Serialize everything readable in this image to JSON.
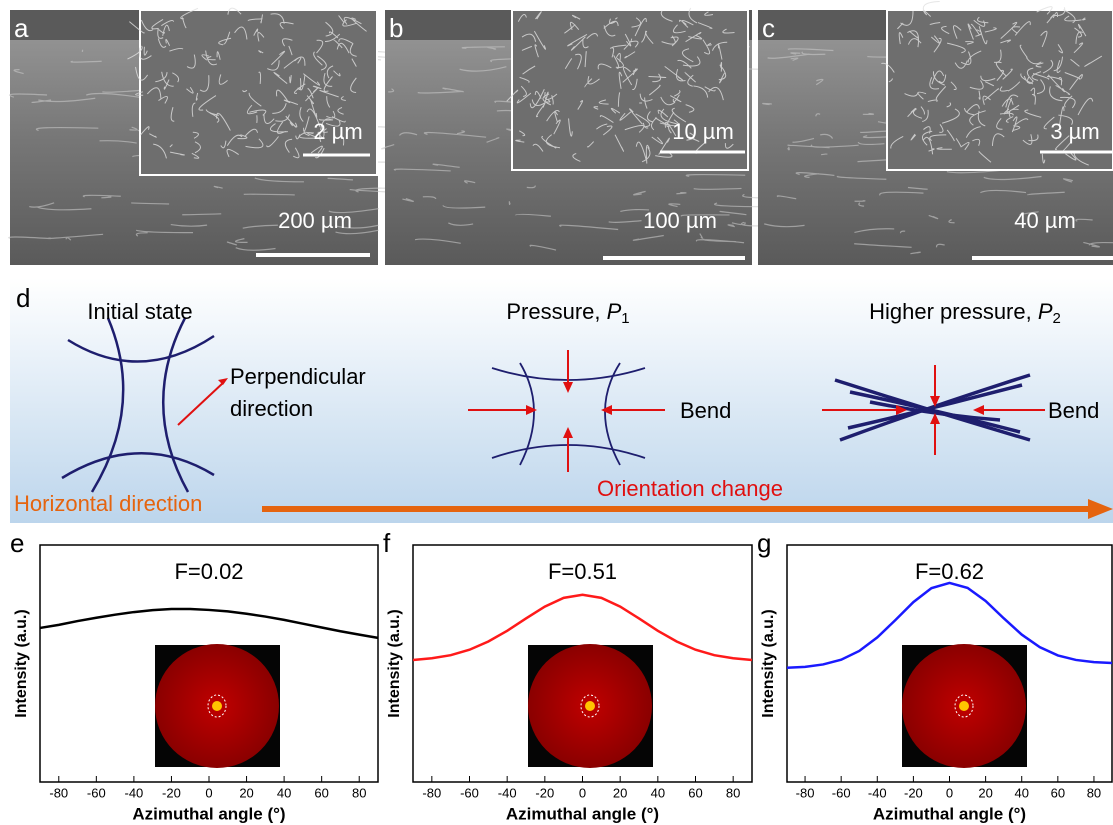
{
  "panels": [
    {
      "letter": "a",
      "scale": "200 µm",
      "inset_scale": "2 µm"
    },
    {
      "letter": "b",
      "scale": "100 µm",
      "inset_scale": "10 µm"
    },
    {
      "letter": "c",
      "scale": "40 µm",
      "inset_scale": "3 µm"
    }
  ],
  "diagram": {
    "letter": "d",
    "initial": "Initial state",
    "perpendicular": [
      "Perpendicular",
      "direction"
    ],
    "pressure": {
      "text": "Pressure, ",
      "symbol": "P",
      "sub": "1"
    },
    "higher_pressure": {
      "text": "Higher pressure, ",
      "symbol": "P",
      "sub": "2"
    },
    "bend_1": "Bend",
    "bend_2": "Bend",
    "horizontal": "Horizontal direction",
    "orientation": "Orientation change"
  },
  "chart_data": [
    {
      "type": "line",
      "letter": "e",
      "title": "F=0.02",
      "xlabel": "Azimuthal angle (°)",
      "ylabel": "Intensity (a.u.)",
      "x": [
        -90,
        -80,
        -70,
        -60,
        -50,
        -40,
        -30,
        -20,
        -10,
        0,
        10,
        20,
        30,
        40,
        50,
        60,
        70,
        80,
        90
      ],
      "series": [
        {
          "color": "#000000",
          "values": [
            65,
            66.3,
            67.9,
            69.3,
            70.6,
            71.7,
            72.5,
            73,
            73,
            72.6,
            72,
            71,
            69.8,
            68.4,
            66.8,
            65.2,
            63.6,
            62.2,
            60.8
          ]
        }
      ],
      "xlim": [
        -90,
        90
      ],
      "ylim": [
        0,
        100
      ],
      "xticks": [
        -80,
        -60,
        -40,
        -20,
        0,
        20,
        40,
        60,
        80
      ]
    },
    {
      "type": "line",
      "letter": "f",
      "title": "F=0.51",
      "xlabel": "Azimuthal angle (°)",
      "ylabel": "Intensity (a.u.)",
      "x": [
        -90,
        -80,
        -70,
        -60,
        -50,
        -40,
        -30,
        -20,
        -10,
        0,
        10,
        20,
        30,
        40,
        50,
        60,
        70,
        80,
        90
      ],
      "series": [
        {
          "color": "#ff1a1a",
          "values": [
            51.5,
            52.2,
            53.5,
            55.8,
            59.3,
            63.8,
            69,
            74,
            77.7,
            79,
            77.7,
            74,
            69,
            63.8,
            59.3,
            55.8,
            53.5,
            52.2,
            51.5
          ]
        }
      ],
      "xlim": [
        -90,
        90
      ],
      "ylim": [
        0,
        100
      ],
      "xticks": [
        -80,
        -60,
        -40,
        -20,
        0,
        20,
        40,
        60,
        80
      ]
    },
    {
      "type": "line",
      "letter": "g",
      "title": "F=0.62",
      "xlabel": "Azimuthal angle (°)",
      "ylabel": "Intensity (a.u.)",
      "x": [
        -90,
        -80,
        -70,
        -60,
        -50,
        -40,
        -30,
        -20,
        -10,
        0,
        10,
        20,
        30,
        40,
        50,
        60,
        70,
        80,
        90
      ],
      "series": [
        {
          "color": "#1a1aff",
          "values": [
            48.2,
            48.6,
            49.6,
            51.6,
            55.3,
            61,
            68.3,
            75.9,
            81.8,
            84,
            81.9,
            76.4,
            69.1,
            62.2,
            56.9,
            53.4,
            51.5,
            50.6,
            50.2
          ]
        }
      ],
      "xlim": [
        -90,
        90
      ],
      "ylim": [
        0,
        100
      ],
      "xticks": [
        -80,
        -60,
        -40,
        -20,
        0,
        20,
        40,
        60,
        80
      ]
    }
  ]
}
